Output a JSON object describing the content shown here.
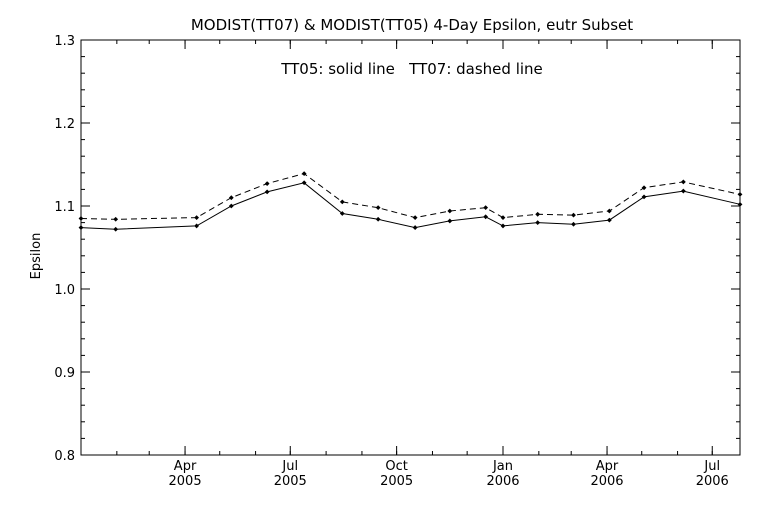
{
  "chart_data": {
    "type": "line",
    "title": "MODIST(TT07) & MODIST(TT05) 4-Day Epsilon, eutr Subset",
    "annotation": "TT05: solid line   TT07: dashed line",
    "xlabel": "",
    "ylabel": "Epsilon",
    "ylim": [
      0.8,
      1.3
    ],
    "yticks": [
      "0.8",
      "0.9",
      "1.0",
      "1.1",
      "1.2",
      "1.3"
    ],
    "xlim": [
      "2005-01-01",
      "2006-07-25"
    ],
    "xticks": [
      {
        "date": "2005-04-01",
        "month": "Apr",
        "year": "2005"
      },
      {
        "date": "2005-07-01",
        "month": "Jul",
        "year": "2005"
      },
      {
        "date": "2005-10-01",
        "month": "Oct",
        "year": "2005"
      },
      {
        "date": "2006-01-01",
        "month": "Jan",
        "year": "2006"
      },
      {
        "date": "2006-04-01",
        "month": "Apr",
        "year": "2006"
      },
      {
        "date": "2006-07-01",
        "month": "Jul",
        "year": "2006"
      }
    ],
    "grid": false,
    "series": [
      {
        "style": "solid",
        "points": [
          [
            "2005-01-01",
            1.074
          ],
          [
            "2005-01-31",
            1.072
          ],
          [
            "2005-04-11",
            1.076
          ],
          [
            "2005-05-11",
            1.1
          ],
          [
            "2005-06-11",
            1.117
          ],
          [
            "2005-07-13",
            1.128
          ],
          [
            "2005-08-15",
            1.091
          ],
          [
            "2005-09-15",
            1.084
          ],
          [
            "2005-10-17",
            1.074
          ],
          [
            "2005-11-16",
            1.082
          ],
          [
            "2005-12-17",
            1.087
          ],
          [
            "2006-01-01",
            1.076
          ],
          [
            "2006-01-31",
            1.08
          ],
          [
            "2006-03-03",
            1.078
          ],
          [
            "2006-04-03",
            1.083
          ],
          [
            "2006-05-03",
            1.111
          ],
          [
            "2006-06-06",
            1.118
          ],
          [
            "2006-07-25",
            1.102
          ]
        ]
      },
      {
        "style": "dashed",
        "points": [
          [
            "2005-01-01",
            1.085
          ],
          [
            "2005-01-31",
            1.084
          ],
          [
            "2005-04-11",
            1.086
          ],
          [
            "2005-05-11",
            1.11
          ],
          [
            "2005-06-11",
            1.127
          ],
          [
            "2005-07-13",
            1.139
          ],
          [
            "2005-08-15",
            1.105
          ],
          [
            "2005-09-15",
            1.098
          ],
          [
            "2005-10-17",
            1.086
          ],
          [
            "2005-11-16",
            1.094
          ],
          [
            "2005-12-17",
            1.098
          ],
          [
            "2006-01-01",
            1.086
          ],
          [
            "2006-01-31",
            1.09
          ],
          [
            "2006-03-03",
            1.089
          ],
          [
            "2006-04-03",
            1.094
          ],
          [
            "2006-05-03",
            1.122
          ],
          [
            "2006-06-06",
            1.129
          ],
          [
            "2006-07-25",
            1.114
          ]
        ]
      }
    ]
  }
}
